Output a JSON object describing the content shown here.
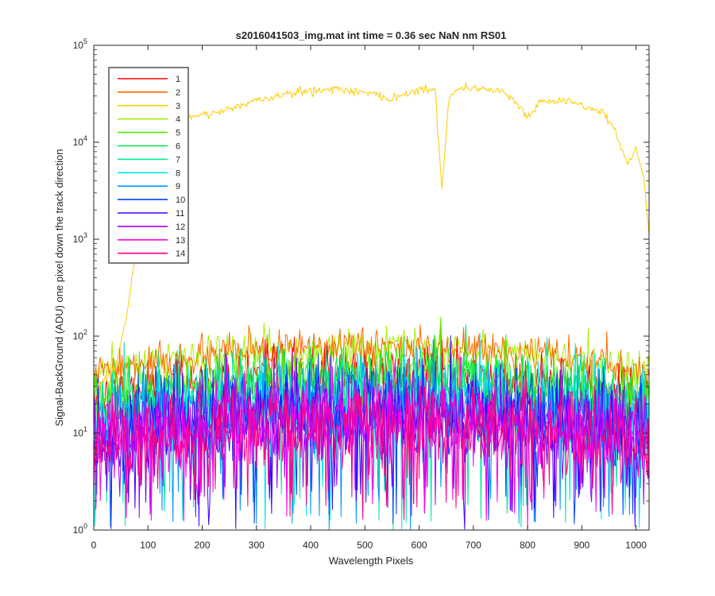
{
  "chart_data": {
    "type": "line",
    "title": "s2016041503_img.mat int time = 0.36 sec  NaN nm RS01",
    "xlabel": "Wavelength Pixels",
    "ylabel": "Signal-BackGround (ADU) one pixel down the track direction",
    "xlim": [
      0,
      1024
    ],
    "ylim": [
      1,
      100000
    ],
    "yscale": "log",
    "grid": false,
    "legend_position": "top-left",
    "x_ticks": [
      0,
      100,
      200,
      300,
      400,
      500,
      600,
      700,
      800,
      900,
      1000
    ],
    "x_tick_labels": [
      "0",
      "100",
      "200",
      "300",
      "400",
      "500",
      "600",
      "700",
      "800",
      "900",
      "1000"
    ],
    "y_ticks": [
      1,
      10,
      100,
      1000,
      10000,
      100000
    ],
    "y_tick_labels": [
      {
        "base": "10",
        "exp": "0"
      },
      {
        "base": "10",
        "exp": "1"
      },
      {
        "base": "10",
        "exp": "2"
      },
      {
        "base": "10",
        "exp": "3"
      },
      {
        "base": "10",
        "exp": "4"
      },
      {
        "base": "10",
        "exp": "5"
      }
    ],
    "series": [
      {
        "name": "1",
        "color": "#ff0000",
        "level": 40
      },
      {
        "name": "2",
        "color": "#ff6a00",
        "level": 75
      },
      {
        "name": "3",
        "color": "#ffcc00",
        "x": [
          0,
          20,
          40,
          60,
          80,
          100,
          130,
          160,
          200,
          250,
          300,
          350,
          380,
          420,
          450,
          470,
          500,
          530,
          550,
          580,
          610,
          630,
          642,
          655,
          680,
          720,
          760,
          790,
          800,
          820,
          860,
          900,
          940,
          960,
          975,
          985,
          1000,
          1015,
          1024
        ],
        "values": [
          30,
          35,
          50,
          150,
          900,
          9000,
          14000,
          17000,
          19000,
          22000,
          27000,
          31000,
          33000,
          35000,
          36000,
          34000,
          33000,
          30000,
          28000,
          33000,
          36000,
          33000,
          3200,
          30000,
          37000,
          36000,
          33000,
          22000,
          18000,
          25000,
          27000,
          24000,
          20000,
          14000,
          8000,
          6000,
          9000,
          4000,
          1100
        ]
      },
      {
        "name": "4",
        "color": "#a6f000",
        "level": 78
      },
      {
        "name": "5",
        "color": "#4ff000",
        "level": 40
      },
      {
        "name": "6",
        "color": "#00e640",
        "level": 34
      },
      {
        "name": "7",
        "color": "#00e6a0",
        "level": 28
      },
      {
        "name": "8",
        "color": "#00e6e6",
        "level": 23
      },
      {
        "name": "9",
        "color": "#0096ff",
        "level": 20
      },
      {
        "name": "10",
        "color": "#0040ff",
        "level": 18
      },
      {
        "name": "11",
        "color": "#4000ff",
        "level": 16
      },
      {
        "name": "12",
        "color": "#a000ff",
        "level": 15
      },
      {
        "name": "13",
        "color": "#ff00e6",
        "level": 14
      },
      {
        "name": "14",
        "color": "#ff0080",
        "level": 13
      }
    ]
  }
}
